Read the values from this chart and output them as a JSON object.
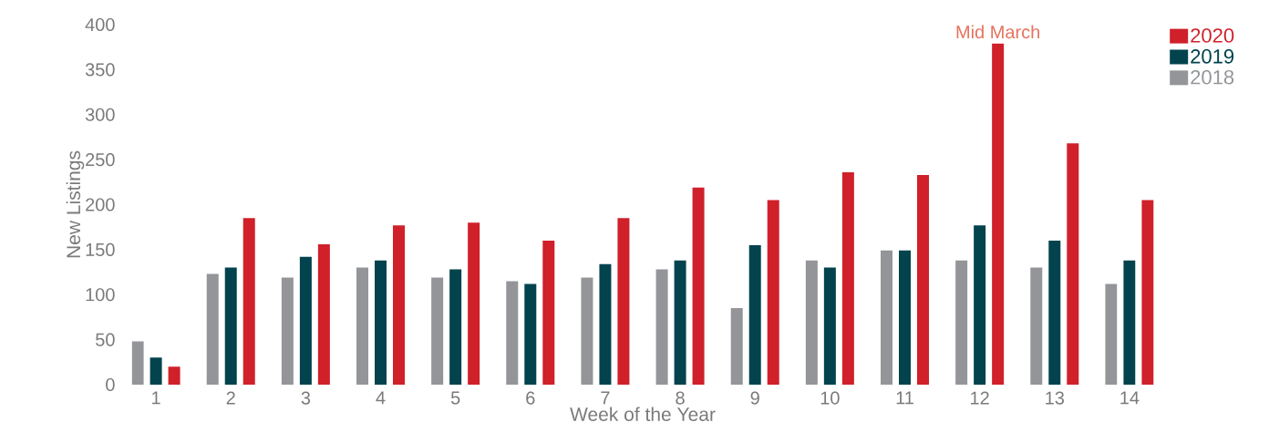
{
  "chart_data": {
    "type": "bar",
    "xlabel": "Week of the Year",
    "ylabel": "New Listings",
    "categories": [
      "1",
      "2",
      "3",
      "4",
      "5",
      "6",
      "7",
      "8",
      "9",
      "10",
      "11",
      "12",
      "13",
      "14"
    ],
    "series": [
      {
        "name": "2018",
        "color": "#939598",
        "values": [
          48,
          123,
          119,
          130,
          119,
          115,
          119,
          128,
          85,
          138,
          149,
          138,
          130,
          112
        ]
      },
      {
        "name": "2019",
        "color": "#02434d",
        "values": [
          30,
          130,
          142,
          138,
          128,
          112,
          134,
          138,
          155,
          130,
          149,
          177,
          160,
          138
        ]
      },
      {
        "name": "2020",
        "color": "#d0202a",
        "values": [
          20,
          185,
          156,
          177,
          180,
          160,
          185,
          219,
          205,
          236,
          233,
          379,
          268,
          205
        ]
      }
    ],
    "ylim": [
      0,
      400
    ],
    "yticks": [
      0,
      50,
      100,
      150,
      200,
      250,
      300,
      350,
      400
    ],
    "annotations": [
      "Mid March"
    ],
    "grid": false,
    "legend": "top right"
  }
}
